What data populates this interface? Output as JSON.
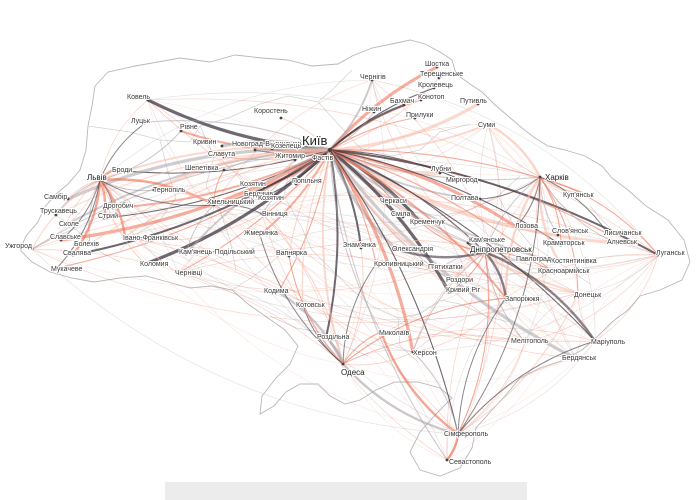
{
  "map": {
    "capital": "Київ",
    "cities": [
      {
        "name": "Шостка",
        "key": "shostka"
      },
      {
        "name": "Терещенське",
        "key": "tereshchenske"
      },
      {
        "name": "Кролевець",
        "key": "krolevets"
      },
      {
        "name": "Чернігів",
        "key": "chernihiv"
      },
      {
        "name": "Конотоп",
        "key": "konotop"
      },
      {
        "name": "Путивль",
        "key": "putyvl"
      },
      {
        "name": "Бахмач",
        "key": "bakhmach"
      },
      {
        "name": "Ніжин",
        "key": "nizhyn"
      },
      {
        "name": "Прилуки",
        "key": "pryluky"
      },
      {
        "name": "Суми",
        "key": "sumy"
      },
      {
        "name": "Ковель",
        "key": "kovel"
      },
      {
        "name": "Луцьк",
        "key": "lutsk"
      },
      {
        "name": "Рівне",
        "key": "rivne"
      },
      {
        "name": "Коростень",
        "key": "korosten"
      },
      {
        "name": "Новоград-Волинський",
        "key": "novohrad"
      },
      {
        "name": "Кривин",
        "key": "kryvyn"
      },
      {
        "name": "Славута",
        "key": "slavuta"
      },
      {
        "name": "Житомир",
        "key": "zhytomyr"
      },
      {
        "name": "Фастів",
        "key": "fastiv"
      },
      {
        "name": "Шепетівка",
        "key": "shepetivka"
      },
      {
        "name": "Козятин",
        "key": "koziatyn"
      },
      {
        "name": "Попільня",
        "key": "popilnia"
      },
      {
        "name": "Бердичів",
        "key": "berdychiv"
      },
      {
        "name": "Козятин",
        "key": "koziatyn2"
      },
      {
        "name": "Козелець",
        "key": "kozelets"
      },
      {
        "name": "Лубни",
        "key": "lubny"
      },
      {
        "name": "Миргород",
        "key": "myrhorod"
      },
      {
        "name": "Полтава",
        "key": "poltava"
      },
      {
        "name": "Черкаси",
        "key": "cherkasy"
      },
      {
        "name": "Сміла",
        "key": "smila"
      },
      {
        "name": "Кременчук",
        "key": "kremenchuk"
      },
      {
        "name": "Харків",
        "key": "kharkiv"
      },
      {
        "name": "Куп'янськ",
        "key": "kupiansk"
      },
      {
        "name": "Львів",
        "key": "lviv"
      },
      {
        "name": "Броди",
        "key": "brody"
      },
      {
        "name": "Самбір",
        "key": "sambir"
      },
      {
        "name": "Дрогобич",
        "key": "drohobych"
      },
      {
        "name": "Трускавець",
        "key": "truskavets"
      },
      {
        "name": "Стрий",
        "key": "stryi"
      },
      {
        "name": "Сколе",
        "key": "skole"
      },
      {
        "name": "Славське",
        "key": "slavske"
      },
      {
        "name": "Болехів",
        "key": "bolekhiv"
      },
      {
        "name": "Свалява",
        "key": "svaliava"
      },
      {
        "name": "Ужгород",
        "key": "uzhhorod"
      },
      {
        "name": "Мукачеве",
        "key": "mukacheve"
      },
      {
        "name": "Тернопіль",
        "key": "ternopil"
      },
      {
        "name": "Хмельницький",
        "key": "khmelnytskyi"
      },
      {
        "name": "Вінниця",
        "key": "vinnytsia"
      },
      {
        "name": "Жмеринка",
        "key": "zhmerynka"
      },
      {
        "name": "Івано-Франківськ",
        "key": "ivano"
      },
      {
        "name": "Коломия",
        "key": "kolomyia"
      },
      {
        "name": "Кам'янець-Подільський",
        "key": "kamianets"
      },
      {
        "name": "Чернівці",
        "key": "chernivtsi"
      },
      {
        "name": "Вапнярка",
        "key": "vapniarka"
      },
      {
        "name": "Знам'янка",
        "key": "znamianka"
      },
      {
        "name": "Олександрія",
        "key": "oleksandriia"
      },
      {
        "name": "Кропивницький",
        "key": "kropyvnytskyi"
      },
      {
        "name": "П'ятихатки",
        "key": "piatykhatky"
      },
      {
        "name": "Дніпропетровськ",
        "key": "dnipro"
      },
      {
        "name": "Кам'янське",
        "key": "kamianske"
      },
      {
        "name": "Лозова",
        "key": "lozova"
      },
      {
        "name": "Слов'янськ",
        "key": "sloviansk"
      },
      {
        "name": "Краматорськ",
        "key": "kramatorsk"
      },
      {
        "name": "Костянтинівка",
        "key": "kostiantynivka"
      },
      {
        "name": "Лисичанськ",
        "key": "lysychansk"
      },
      {
        "name": "Алчевськ",
        "key": "alchevsk"
      },
      {
        "name": "Луганськ",
        "key": "luhansk"
      },
      {
        "name": "Павлоград",
        "key": "pavlohrad"
      },
      {
        "name": "Красноармійськ",
        "key": "krasnoarmiisk"
      },
      {
        "name": "Донецьк",
        "key": "donetsk"
      },
      {
        "name": "Кривий Ріг",
        "key": "kryvyirih"
      },
      {
        "name": "Роздори",
        "key": "rozdory"
      },
      {
        "name": "Запоріжжя",
        "key": "zaporizhzhia"
      },
      {
        "name": "Мелітополь",
        "key": "melitopol"
      },
      {
        "name": "Маріуполь",
        "key": "mariupol"
      },
      {
        "name": "Бердянськ",
        "key": "berdiansk"
      },
      {
        "name": "Кодима",
        "key": "kodyma"
      },
      {
        "name": "Котовськ",
        "key": "kotovsk"
      },
      {
        "name": "Роздільна",
        "key": "rozdilna"
      },
      {
        "name": "Миколаїв",
        "key": "mykolaiv"
      },
      {
        "name": "Херсон",
        "key": "kherson"
      },
      {
        "name": "Одеса",
        "key": "odesa"
      },
      {
        "name": "Сімферополь",
        "key": "simferopol"
      },
      {
        "name": "Севастополь",
        "key": "sevastopol"
      }
    ],
    "colors": {
      "route_strong": "#ee6a4c",
      "route_light": "#f8b9a6",
      "route_dark": "#3d3640",
      "route_grey": "#a8a4aa",
      "border": "#b8b8b8",
      "footer": "#ececec"
    }
  }
}
